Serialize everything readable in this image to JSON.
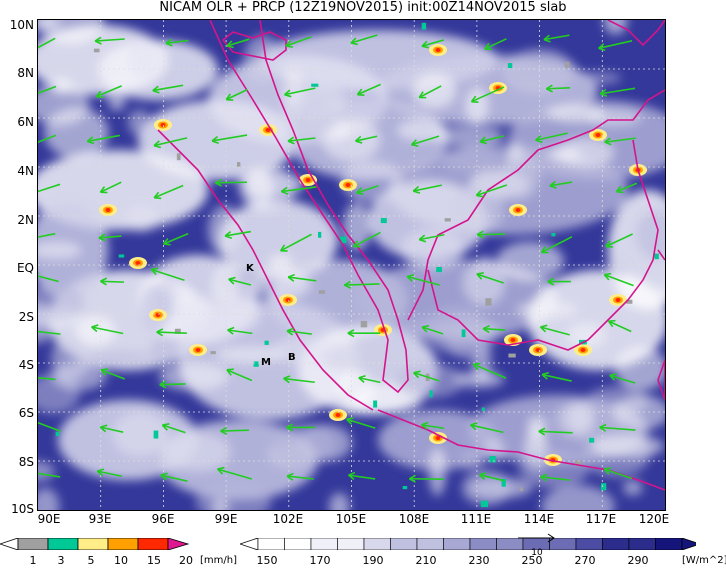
{
  "title": "NICAM OLR + PRCP (12Z19NOV2015) init:00Z14NOV2015 slab",
  "map": {
    "lat_labels": [
      "10N",
      "8N",
      "6N",
      "4N",
      "2N",
      "EQ",
      "2S",
      "4S",
      "6S",
      "8S",
      "10S"
    ],
    "lon_labels": [
      "90E",
      "93E",
      "96E",
      "99E",
      "102E",
      "105E",
      "108E",
      "111E",
      "114E",
      "117E",
      "120E"
    ],
    "extent": {
      "lon_min": 90,
      "lon_max": 120,
      "lat_min": -10,
      "lat_max": 10
    },
    "place_labels": [
      "K",
      "M",
      "B"
    ],
    "coastline_color": "#d4148c",
    "wind_vector_color": "#22cc22",
    "grid": true
  },
  "precip_colorbar": {
    "ticks": [
      "1",
      "3",
      "5",
      "10",
      "15",
      "20"
    ],
    "unit": "[mm/h]",
    "colors": [
      "#ffffff",
      "#a0a0a0",
      "#00c896",
      "#ffee88",
      "#ffa000",
      "#ff2800",
      "#e01890"
    ]
  },
  "olr_colorbar": {
    "ticks": [
      "150",
      "170",
      "190",
      "210",
      "230",
      "250",
      "270",
      "290"
    ],
    "unit": "[W/m^2]",
    "colors": [
      "#ffffff",
      "#f0f0f8",
      "#d8d8ec",
      "#c0c0e0",
      "#a8a8d4",
      "#8c8cc4",
      "#6c6cb4",
      "#4c4ca4",
      "#2c2c8c",
      "#14147a"
    ]
  },
  "reference_vector_label": "10"
}
